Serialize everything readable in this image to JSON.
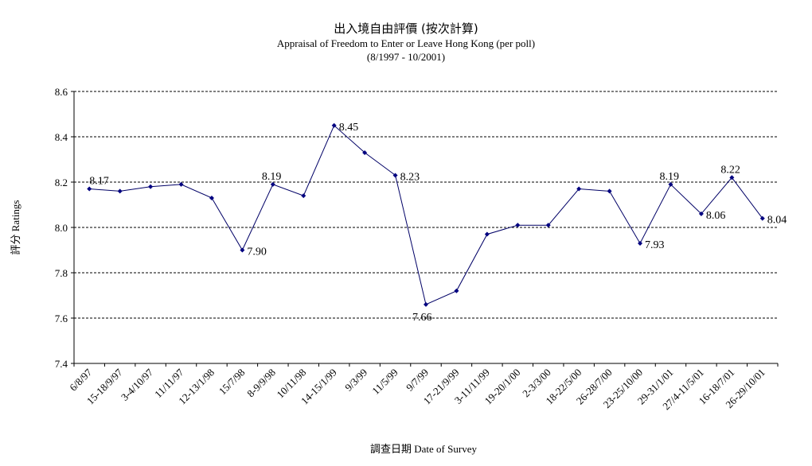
{
  "chart_data": {
    "type": "line",
    "title": "出入境自由評價 (按次計算)",
    "subtitle": "Appraisal of Freedom to Enter or Leave Hong Kong (per poll)",
    "period": "(8/1997 - 10/2001)",
    "xlabel": "調查日期 Date of Survey",
    "ylabel": "評分 Ratings",
    "ylim": [
      7.4,
      8.6
    ],
    "yticks": [
      "7.4",
      "7.6",
      "7.8",
      "8.0",
      "8.2",
      "8.4",
      "8.6"
    ],
    "grid": true,
    "tick_labels": [
      "6/8/97",
      "15-18/9/97",
      "3-4/10/97",
      "11/11/97",
      "12-13/1/98",
      "15/7/98",
      "8-9/9/98",
      "10/11/98",
      "14-15/1/99",
      "9/3/99",
      "11/5/99",
      "9/7/99",
      "17-21/9/99",
      "3-11/11/99",
      "19-20/1/00",
      "2-3/3/00",
      "18-22/5/00",
      "26-28/7/00",
      "23-25/10/00",
      "29-31/1/01",
      "27/4-11/5/01",
      "16-18/7/01",
      "26-29/10/01"
    ],
    "values": [
      8.17,
      8.16,
      8.18,
      8.19,
      8.13,
      7.9,
      8.19,
      8.14,
      8.45,
      8.33,
      8.23,
      7.66,
      7.72,
      7.97,
      8.01,
      8.01,
      8.17,
      8.16,
      7.93,
      8.19,
      8.06,
      8.22,
      8.04
    ],
    "data_labels": [
      {
        "index": 0,
        "text": "8.17"
      },
      {
        "index": 5,
        "text": "7.90"
      },
      {
        "index": 6,
        "text": "8.19"
      },
      {
        "index": 8,
        "text": "8.45"
      },
      {
        "index": 10,
        "text": "8.23"
      },
      {
        "index": 11,
        "text": "7.66"
      },
      {
        "index": 18,
        "text": "7.93"
      },
      {
        "index": 19,
        "text": "8.19"
      },
      {
        "index": 20,
        "text": "8.06"
      },
      {
        "index": 21,
        "text": "8.22"
      },
      {
        "index": 22,
        "text": "8.04"
      }
    ],
    "line_color": "#000066",
    "marker_color": "#000080"
  }
}
